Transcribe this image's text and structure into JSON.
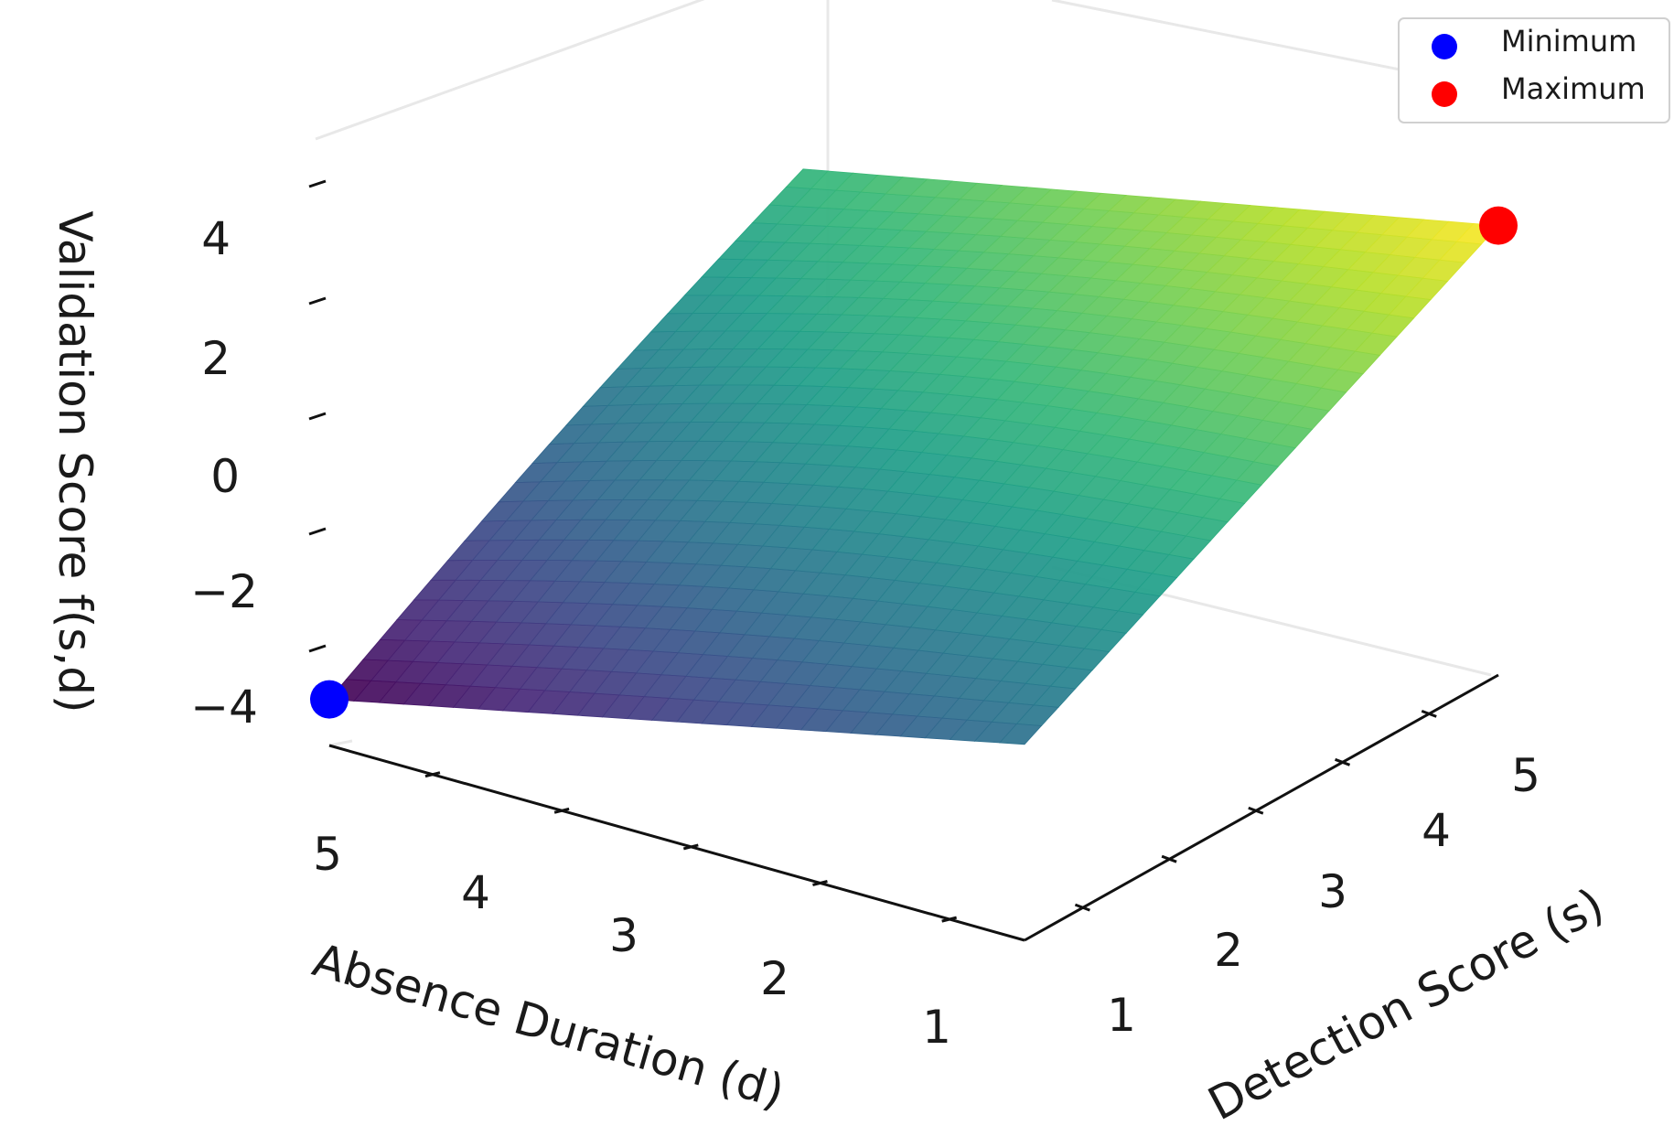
{
  "chart_data": {
    "type": "surface3d",
    "title": "",
    "colormap": "viridis",
    "x_axis": {
      "label": "Detection Score (s)",
      "ticks": [
        "1",
        "2",
        "3",
        "4",
        "5"
      ],
      "range": [
        1,
        5
      ]
    },
    "y_axis": {
      "label": "Absence Duration (d)",
      "ticks": [
        "1",
        "2",
        "3",
        "4",
        "5"
      ],
      "range": [
        1,
        5
      ]
    },
    "z_axis": {
      "label": "Validation Score f(s,d)",
      "ticks": [
        "−4",
        "−2",
        "0",
        "2",
        "4"
      ],
      "range": [
        -5,
        5
      ]
    },
    "surface": {
      "corner_values": [
        {
          "s": 1,
          "d": 1,
          "f": -1.6
        },
        {
          "s": 5,
          "d": 1,
          "f": 2.8
        },
        {
          "s": 1,
          "d": 5,
          "f": -4.2
        },
        {
          "s": 5,
          "d": 5,
          "f": 0.4
        }
      ]
    },
    "points": [
      {
        "name": "Minimum",
        "s": 1,
        "d": 5,
        "f": -4.2,
        "color": "#0000ff"
      },
      {
        "name": "Maximum",
        "s": 5,
        "d": 1,
        "f": 2.8,
        "color": "#ff0000"
      }
    ],
    "legend": {
      "position": "top-right",
      "entries": [
        {
          "label": "Minimum",
          "color": "#0000ff"
        },
        {
          "label": "Maximum",
          "color": "#ff0000"
        }
      ]
    },
    "grid": false
  }
}
